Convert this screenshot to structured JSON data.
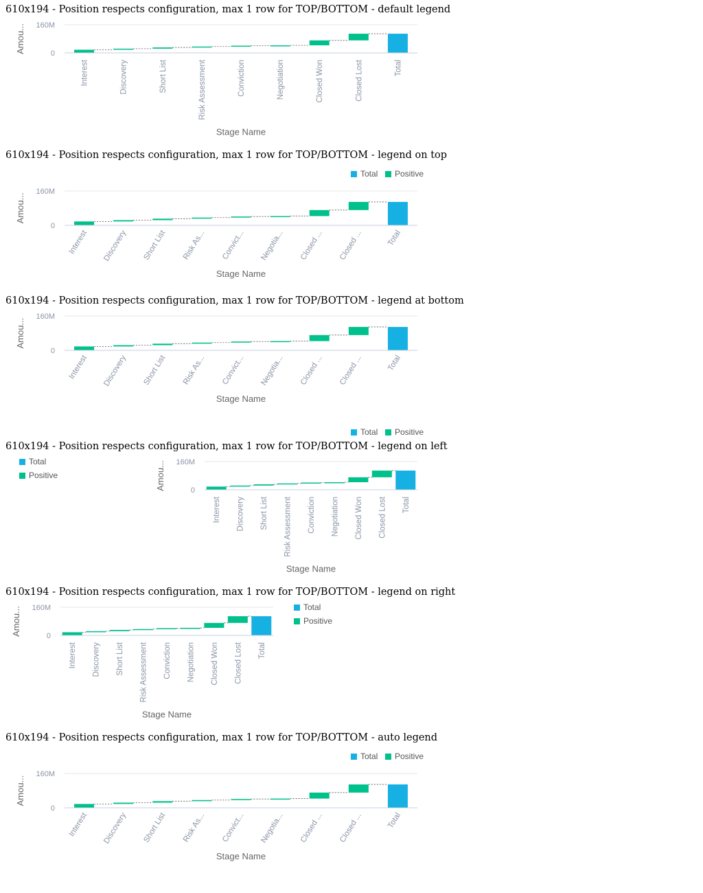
{
  "colors": {
    "positive": "#00c08b",
    "total": "#16b0e2",
    "axis_text": "#8a94a6",
    "axis_title": "#666666",
    "grid": "#e6e6e6",
    "baseline": "#c6cfe0",
    "connector": "#555555"
  },
  "common": {
    "y_label": "Amou...",
    "y_ticks": [
      "0",
      "160M"
    ],
    "x_title": "Stage Name",
    "legend": {
      "total": "Total",
      "positive": "Positive"
    }
  },
  "charts": [
    {
      "title": "610x194 - Position respects configuration, max 1 row for TOP/BOTTOM - default legend",
      "legend": "none",
      "tick_labels": [
        "Interest",
        "Discovery",
        "Short List",
        "Risk Assessment",
        "Conviction",
        "Negotiation",
        "Closed Won",
        "Closed Lost",
        "Total"
      ]
    },
    {
      "title": "610x194 - Position respects configuration, max 1 row for TOP/BOTTOM - legend on top",
      "legend": "top",
      "tick_labels": [
        "Interest",
        "Discovery",
        "Short List",
        "Risk As...",
        "Convict...",
        "Negotia...",
        "Closed ...",
        "Closed ...",
        "Total"
      ]
    },
    {
      "title": "610x194 - Position respects configuration, max 1 row for TOP/BOTTOM - legend at bottom",
      "legend": "bottom",
      "tick_labels": [
        "Interest",
        "Discovery",
        "Short List",
        "Risk As...",
        "Convict...",
        "Negotia...",
        "Closed ...",
        "Closed ...",
        "Total"
      ]
    },
    {
      "title": "610x194 - Position respects configuration, max 1 row for TOP/BOTTOM - legend on left",
      "legend": "left",
      "tick_labels": [
        "Interest",
        "Discovery",
        "Short List",
        "Risk Assessment",
        "Conviction",
        "Negotiation",
        "Closed Won",
        "Closed Lost",
        "Total"
      ]
    },
    {
      "title": "610x194 - Position respects configuration, max 1 row for TOP/BOTTOM - legend on right",
      "legend": "right",
      "tick_labels": [
        "Interest",
        "Discovery",
        "Short List",
        "Risk Assessment",
        "Conviction",
        "Negotiation",
        "Closed Won",
        "Closed Lost",
        "Total"
      ]
    },
    {
      "title": "610x194 - Position respects configuration, max 1 row for TOP/BOTTOM - auto legend",
      "legend": "top",
      "tick_labels": [
        "Interest",
        "Discovery",
        "Short List",
        "Risk As...",
        "Convict...",
        "Negotia...",
        "Closed ...",
        "Closed ...",
        "Total"
      ]
    }
  ],
  "chart_data": {
    "type": "bar",
    "subtype": "waterfall",
    "categories": [
      "Interest",
      "Discovery",
      "Short List",
      "Risk Assessment",
      "Conviction",
      "Negotiation",
      "Closed Won",
      "Closed Lost",
      "Total"
    ],
    "series": [
      {
        "name": "Positive",
        "values": [
          18000000,
          6000000,
          7000000,
          5000000,
          5000000,
          2000000,
          28000000,
          38000000,
          null
        ]
      },
      {
        "name": "Total",
        "values": [
          null,
          null,
          null,
          null,
          null,
          null,
          null,
          null,
          109000000
        ]
      }
    ],
    "xlabel": "Stage Name",
    "ylabel": "Amou...",
    "ylim": [
      0,
      160000000
    ],
    "y_ticks": [
      0,
      160000000
    ],
    "grid": true
  }
}
